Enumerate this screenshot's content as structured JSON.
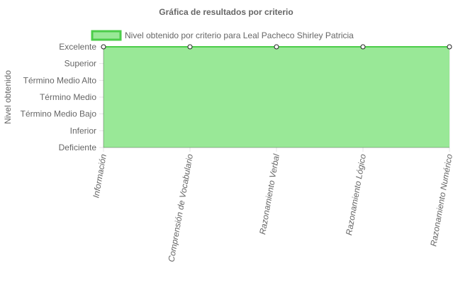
{
  "chart_data": {
    "type": "area",
    "title": "Gráfica de resultados por criterio",
    "ylabel": "Nivel obtenido",
    "xlabel": "",
    "categories": [
      "Información",
      "Comprensión de Vocabulario",
      "Razonamiento Verbal",
      "Razonamiento Lógico",
      "Razonamiento Numérico"
    ],
    "y_levels": [
      "Deficiente",
      "Inferior",
      "Término Medio Bajo",
      "Término Medio",
      "Término Medio Alto",
      "Superior",
      "Excelente"
    ],
    "series": [
      {
        "name": "Nivel obtenido por criterio para Leal Pacheco Shirley Patricia",
        "values": [
          "Excelente",
          "Excelente",
          "Excelente",
          "Excelente",
          "Excelente"
        ]
      }
    ],
    "legend_position": "top",
    "grid": true,
    "colors": {
      "fill": "#99e897",
      "stroke": "#4ccd4a",
      "point_fill": "#ffffff",
      "point_stroke": "#222222"
    }
  }
}
